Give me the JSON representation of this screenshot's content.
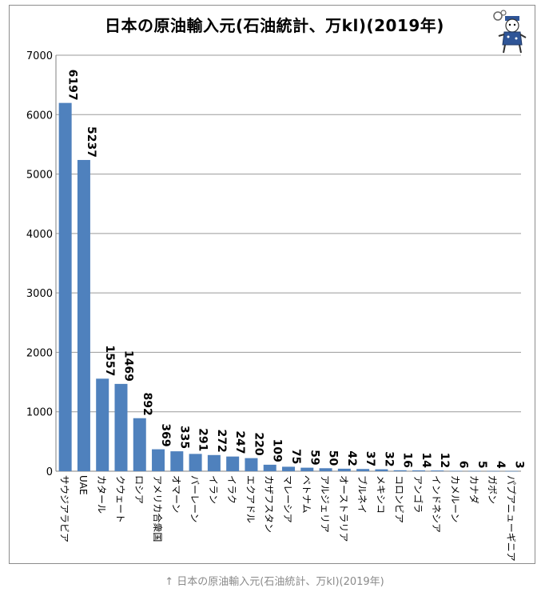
{
  "caption": "↑ 日本の原油輸入元(石油統計、万kl)(2019年)",
  "colors": {
    "bar": "#4f81bd",
    "grid": "#9a9a9a",
    "axis": "#808080"
  },
  "icons": {
    "mascot": "mascot-character-icon"
  },
  "chart_data": {
    "type": "bar",
    "title": "日本の原油輸入元(石油統計、万kl)(2019年)",
    "xlabel": "",
    "ylabel": "",
    "ylim": [
      0,
      7000
    ],
    "yticks": [
      0,
      1000,
      2000,
      3000,
      4000,
      5000,
      6000,
      7000
    ],
    "grid": true,
    "categories": [
      "サウジアラビア",
      "UAE",
      "カタール",
      "クウェート",
      "ロシア",
      "アメリカ合衆国",
      "オマーン",
      "バーレーン",
      "イラン",
      "イラク",
      "エクアドル",
      "カザフスタン",
      "マレーシア",
      "ベトナム",
      "アルジェリア",
      "オーストラリア",
      "ブルネイ",
      "メキシコ",
      "コロンビア",
      "アンゴラ",
      "インドネシア",
      "カメルーン",
      "カナダ",
      "ガボン",
      "パプアニューギニア"
    ],
    "values": [
      6197,
      5237,
      1557,
      1469,
      892,
      369,
      335,
      291,
      272,
      247,
      220,
      109,
      75,
      59,
      50,
      42,
      37,
      32,
      16,
      14,
      12,
      6,
      5,
      4,
      3
    ]
  }
}
